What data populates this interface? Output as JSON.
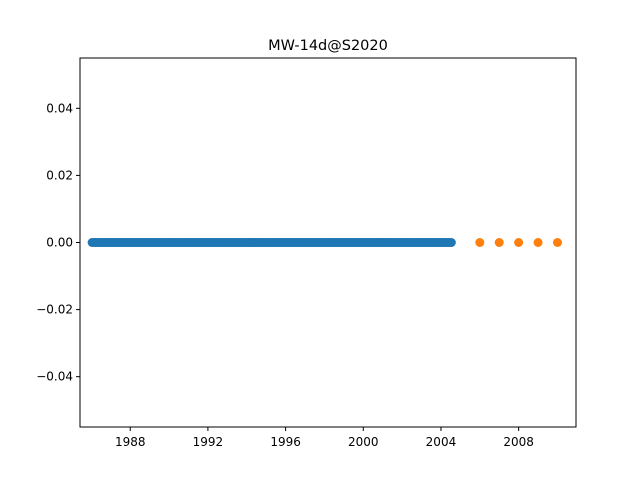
{
  "chart_data": {
    "type": "scatter",
    "title": "MW-14d@S2020",
    "xlabel": "",
    "ylabel": "",
    "xlim": [
      "1985-06-01",
      "2010-12-15"
    ],
    "ylim": [
      -0.055,
      0.055
    ],
    "x_ticks": [
      "1988",
      "1992",
      "1996",
      "2000",
      "2004",
      "2008"
    ],
    "y_ticks": [
      "0.04",
      "0.02",
      "0.00",
      "−0.02",
      "−0.04"
    ],
    "grid": false,
    "legend": "none",
    "series": [
      {
        "color": "#1f77b4",
        "x_start": "1986-01-15",
        "x_end": "2004-07-15",
        "x_step": "monthly",
        "y": 0.0
      },
      {
        "color": "#ff7f0e",
        "x": [
          "2006-01-01",
          "2007-01-01",
          "2008-01-01",
          "2009-01-01",
          "2010-01-01"
        ],
        "y": [
          0.0,
          0.0,
          0.0,
          0.0,
          0.0
        ]
      }
    ]
  }
}
